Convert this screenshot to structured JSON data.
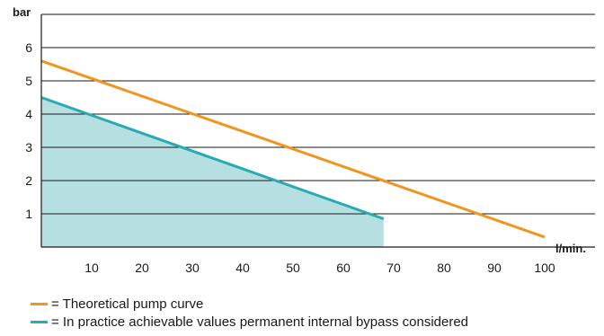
{
  "chart_data": {
    "type": "line",
    "title": "",
    "xlabel": "l/min.",
    "ylabel": "bar",
    "xlim": [
      0,
      100
    ],
    "ylim": [
      0,
      7
    ],
    "x_ticks": [
      10,
      20,
      30,
      40,
      50,
      60,
      70,
      80,
      90,
      100
    ],
    "y_ticks": [
      1,
      2,
      3,
      4,
      5,
      6
    ],
    "grid": "horizontal",
    "legend_position": "bottom",
    "series": [
      {
        "name": "= Theoretical pump curve",
        "color": "#f0961e",
        "x": [
          0,
          100
        ],
        "y": [
          5.6,
          0.3
        ]
      },
      {
        "name": "= In practice achievable values permanent internal bypass considered",
        "color": "#2aaab3",
        "fill": "#b6dfe2",
        "x": [
          0,
          68
        ],
        "y": [
          4.5,
          0.85
        ]
      }
    ]
  }
}
